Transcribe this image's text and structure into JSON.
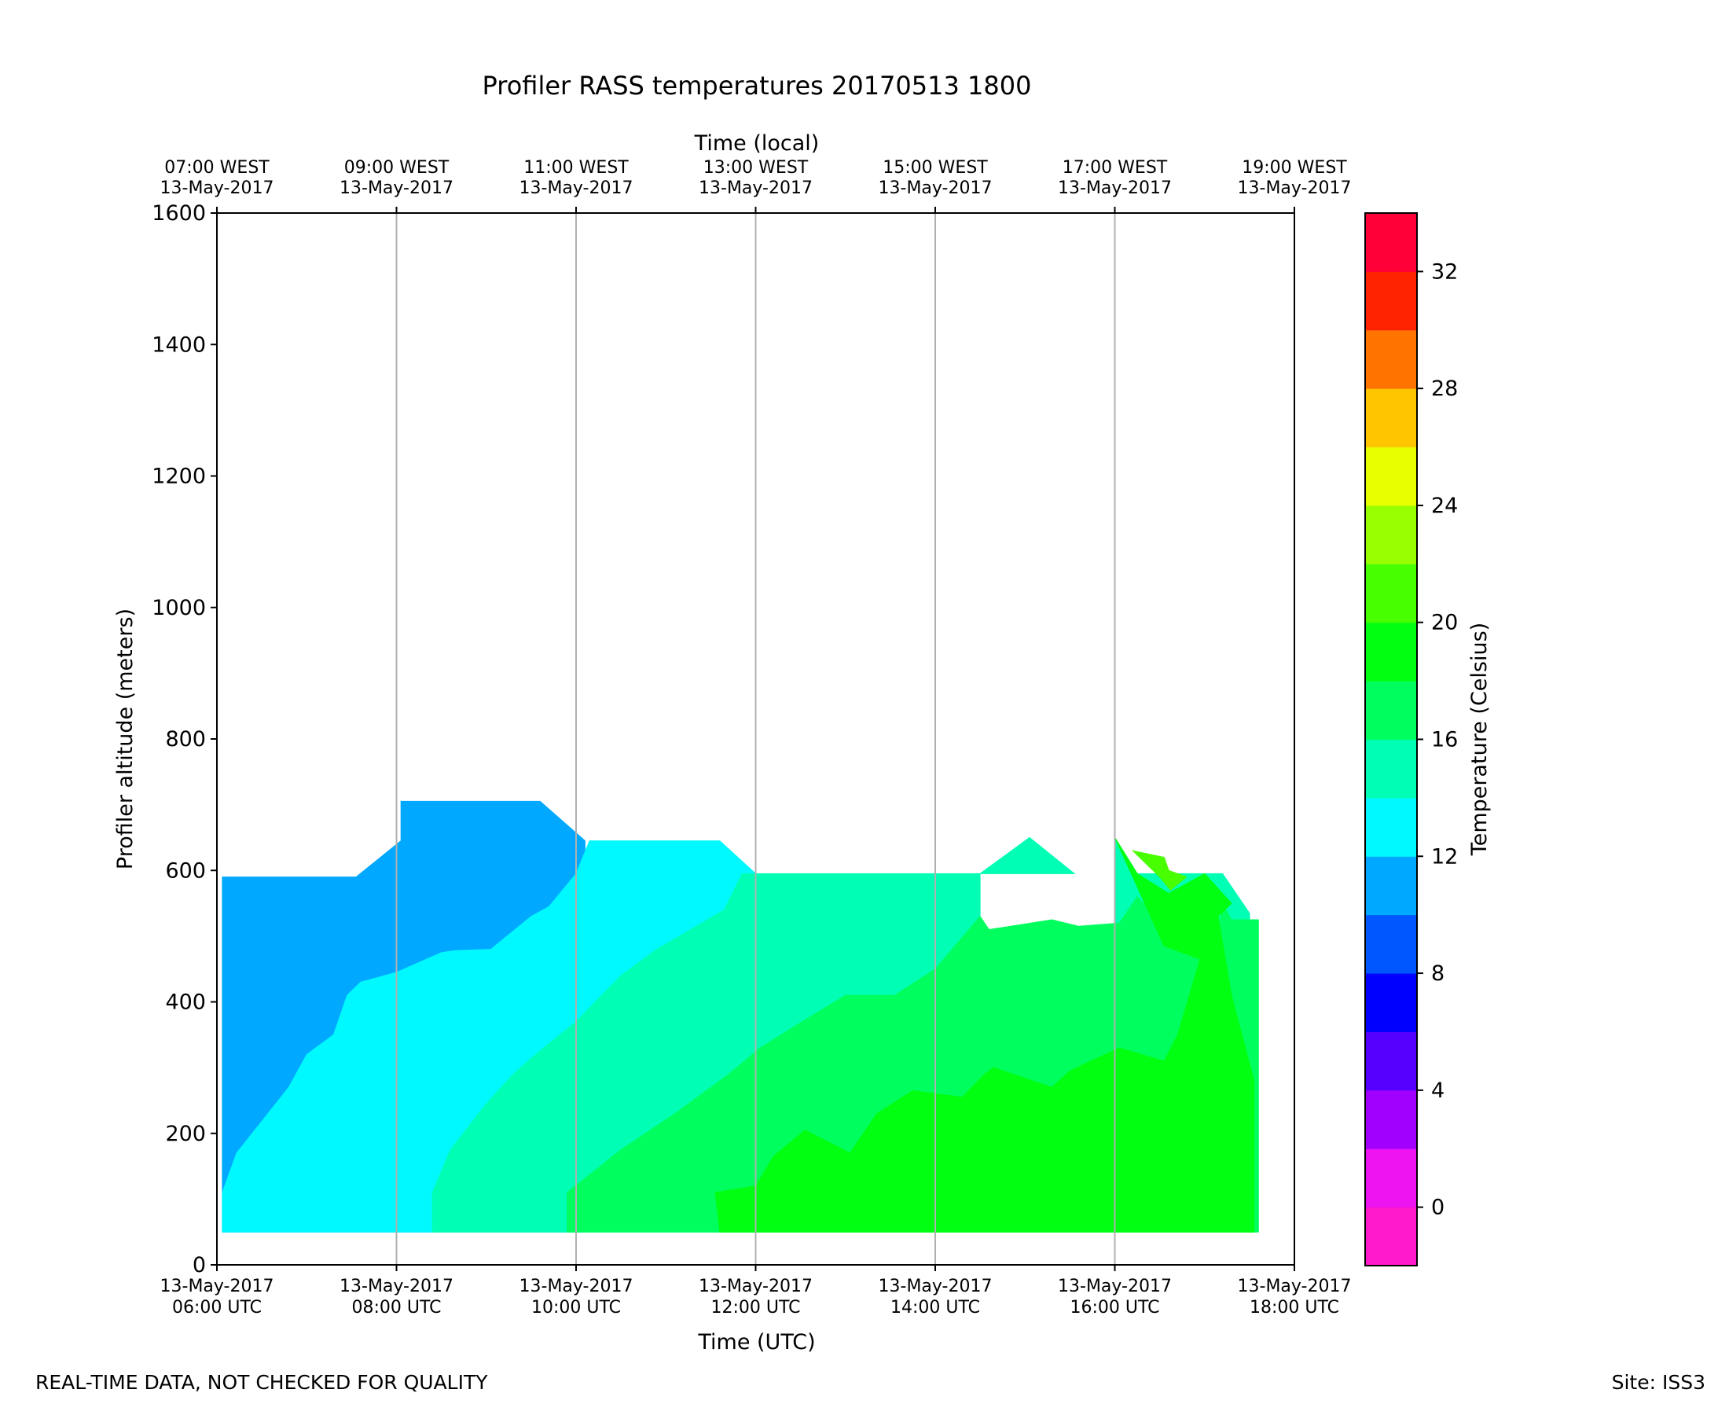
{
  "chart_data": {
    "type": "contour",
    "title": "Profiler RASS temperatures 20170513 1800",
    "top_axis_label": "Time (local)",
    "xlabel": "Time (UTC)",
    "ylabel": "Profiler altitude (meters)",
    "colorbar_label": "Temperature (Celsius)",
    "xlim_hours_utc": [
      6,
      18
    ],
    "ylim": [
      0,
      1600
    ],
    "y_ticks": [
      "0",
      "200",
      "400",
      "600",
      "800",
      "1000",
      "1200",
      "1400",
      "1600"
    ],
    "y_tick_values": [
      0,
      200,
      400,
      600,
      800,
      1000,
      1200,
      1400,
      1600
    ],
    "x_ticks_utc": [
      {
        "hour": 6,
        "date": "13-May-2017",
        "time": "06:00 UTC"
      },
      {
        "hour": 8,
        "date": "13-May-2017",
        "time": "08:00 UTC"
      },
      {
        "hour": 10,
        "date": "13-May-2017",
        "time": "10:00 UTC"
      },
      {
        "hour": 12,
        "date": "13-May-2017",
        "time": "12:00 UTC"
      },
      {
        "hour": 14,
        "date": "13-May-2017",
        "time": "14:00 UTC"
      },
      {
        "hour": 16,
        "date": "13-May-2017",
        "time": "16:00 UTC"
      },
      {
        "hour": 18,
        "date": "13-May-2017",
        "time": "18:00 UTC"
      }
    ],
    "x_ticks_local": [
      {
        "hour": 6,
        "time": "07:00 WEST",
        "date": "13-May-2017"
      },
      {
        "hour": 8,
        "time": "09:00 WEST",
        "date": "13-May-2017"
      },
      {
        "hour": 10,
        "time": "11:00 WEST",
        "date": "13-May-2017"
      },
      {
        "hour": 12,
        "time": "13:00 WEST",
        "date": "13-May-2017"
      },
      {
        "hour": 14,
        "time": "15:00 WEST",
        "date": "13-May-2017"
      },
      {
        "hour": 16,
        "time": "17:00 WEST",
        "date": "13-May-2017"
      },
      {
        "hour": 18,
        "time": "19:00 WEST",
        "date": "13-May-2017"
      }
    ],
    "vertical_gridlines_hours": [
      8,
      10,
      12,
      14,
      16
    ],
    "colorbar_levels": [
      -2,
      0,
      2,
      4,
      6,
      8,
      10,
      12,
      14,
      16,
      18,
      20,
      22,
      24,
      26,
      28,
      30,
      32,
      34
    ],
    "colorbar_colors": [
      "#ff19c8",
      "#ee14f2",
      "#a100ff",
      "#5500ff",
      "#0000ff",
      "#0057ff",
      "#00a8ff",
      "#00f9ff",
      "#00ffb4",
      "#00ff5e",
      "#00ff11",
      "#48ff00",
      "#98ff00",
      "#e8ff00",
      "#ffc600",
      "#ff7300",
      "#ff2200",
      "#ff0038"
    ],
    "colorbar_ticks": [
      "0",
      "4",
      "8",
      "12",
      "16",
      "20",
      "24",
      "28",
      "32"
    ],
    "colorbar_tick_values": [
      0,
      4,
      8,
      12,
      16,
      20,
      24,
      28,
      32
    ],
    "filled_regions": [
      {
        "level": "10-12 C",
        "color": "#00a8ff",
        "polygon": [
          [
            6.06,
            50
          ],
          [
            6.06,
            590
          ],
          [
            7.55,
            590
          ],
          [
            8.05,
            645
          ],
          [
            8.05,
            705
          ],
          [
            9.6,
            705
          ],
          [
            10.1,
            645
          ],
          [
            10.1,
            50
          ]
        ]
      },
      {
        "level": "12-14 C",
        "color": "#00f9ff",
        "polygon": [
          [
            6.06,
            50
          ],
          [
            6.06,
            110
          ],
          [
            6.22,
            170
          ],
          [
            6.8,
            270
          ],
          [
            7.0,
            320
          ],
          [
            7.3,
            350
          ],
          [
            7.45,
            410
          ],
          [
            7.6,
            430
          ],
          [
            8.0,
            445
          ],
          [
            8.5,
            475
          ],
          [
            8.65,
            478
          ],
          [
            9.05,
            480
          ],
          [
            9.5,
            530
          ],
          [
            9.7,
            545
          ],
          [
            10.0,
            595
          ],
          [
            10.15,
            645
          ],
          [
            11.6,
            645
          ],
          [
            12.0,
            595
          ],
          [
            12.0,
            50
          ]
        ]
      },
      {
        "level": "14-16 C",
        "color": "#00ffb4",
        "polygon": [
          [
            8.4,
            50
          ],
          [
            8.4,
            110
          ],
          [
            8.6,
            175
          ],
          [
            9.0,
            245
          ],
          [
            9.3,
            290
          ],
          [
            9.55,
            320
          ],
          [
            10.0,
            370
          ],
          [
            10.5,
            440
          ],
          [
            10.9,
            480
          ],
          [
            11.15,
            500
          ],
          [
            11.65,
            540
          ],
          [
            11.85,
            595
          ],
          [
            15.55,
            595
          ],
          [
            15.05,
            650
          ],
          [
            14.5,
            595
          ],
          [
            14.5,
            50
          ],
          [
            16.0,
            50
          ],
          [
            16.0,
            650
          ],
          [
            16.25,
            595
          ],
          [
            17.2,
            595
          ],
          [
            17.5,
            535
          ],
          [
            17.55,
            280
          ],
          [
            17.55,
            50
          ]
        ]
      },
      {
        "level": "16-18 C",
        "color": "#00ff5e",
        "polygon": [
          [
            9.9,
            50
          ],
          [
            9.9,
            110
          ],
          [
            10.5,
            175
          ],
          [
            11.1,
            230
          ],
          [
            11.7,
            290
          ],
          [
            12.05,
            330
          ],
          [
            12.4,
            360
          ],
          [
            13.0,
            410
          ],
          [
            13.1,
            410
          ],
          [
            13.55,
            410
          ],
          [
            14.0,
            450
          ],
          [
            14.5,
            530
          ],
          [
            14.6,
            510
          ],
          [
            15.3,
            525
          ],
          [
            15.6,
            515
          ],
          [
            16.05,
            520
          ],
          [
            16.25,
            560
          ],
          [
            16.7,
            495
          ],
          [
            17.1,
            470
          ],
          [
            17.2,
            550
          ],
          [
            17.3,
            525
          ],
          [
            17.6,
            525
          ],
          [
            17.6,
            50
          ]
        ]
      },
      {
        "level": "18-20 C",
        "color": "#00ff11",
        "polygon": [
          [
            11.6,
            50
          ],
          [
            11.55,
            110
          ],
          [
            12.0,
            120
          ],
          [
            12.2,
            165
          ],
          [
            12.55,
            205
          ],
          [
            13.05,
            170
          ],
          [
            13.35,
            230
          ],
          [
            13.75,
            265
          ],
          [
            14.3,
            255
          ],
          [
            14.55,
            290
          ],
          [
            14.65,
            300
          ],
          [
            15.3,
            270
          ],
          [
            15.5,
            295
          ],
          [
            16.05,
            330
          ],
          [
            16.55,
            310
          ],
          [
            16.7,
            350
          ],
          [
            16.95,
            465
          ],
          [
            16.55,
            485
          ],
          [
            16.0,
            650
          ],
          [
            16.25,
            595
          ],
          [
            16.6,
            565
          ],
          [
            17.0,
            595
          ],
          [
            17.3,
            550
          ],
          [
            17.15,
            530
          ],
          [
            17.3,
            410
          ],
          [
            17.55,
            280
          ],
          [
            17.55,
            50
          ]
        ]
      },
      {
        "level": "20-22 C",
        "color": "#48ff00",
        "polygon": [
          [
            16.2,
            630
          ],
          [
            16.5,
            590
          ],
          [
            16.62,
            570
          ],
          [
            16.8,
            590
          ],
          [
            16.6,
            600
          ],
          [
            16.55,
            620
          ]
        ]
      }
    ]
  },
  "footer": {
    "left": "REAL-TIME DATA, NOT CHECKED FOR QUALITY",
    "right": "Site: ISS3"
  }
}
